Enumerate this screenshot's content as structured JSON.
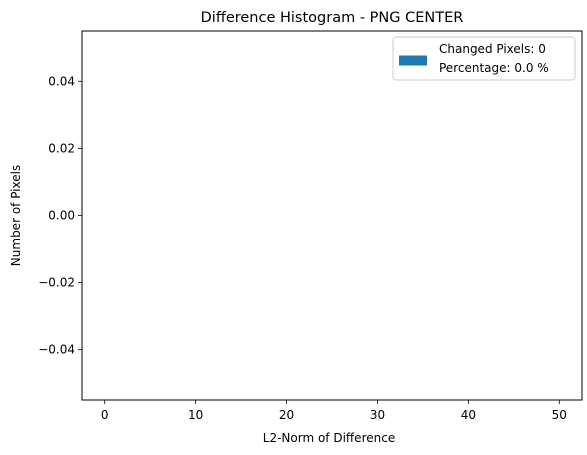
{
  "chart_data": {
    "type": "bar",
    "title": "Difference Histogram - PNG CENTER",
    "xlabel": "L2-Norm of Difference",
    "ylabel": "Number of Pixels",
    "xlim": [
      -2.5,
      52.5
    ],
    "ylim": [
      -0.055,
      0.055
    ],
    "x_ticks": [
      0,
      10,
      20,
      30,
      40,
      50
    ],
    "y_ticks": [
      -0.04,
      -0.02,
      0.0,
      0.02,
      0.04
    ],
    "y_tick_labels": [
      "−0.04",
      "−0.02",
      "0.00",
      "0.02",
      "0.04"
    ],
    "grid": false,
    "series": [
      {
        "name": "Changed Pixels: 0\nPercentage: 0.0 %",
        "color": "#1f77b4",
        "bins": [],
        "values": []
      }
    ],
    "legend": {
      "placement": "top-right",
      "lines": [
        "Changed Pixels: 0",
        "Percentage: 0.0 %"
      ]
    }
  }
}
